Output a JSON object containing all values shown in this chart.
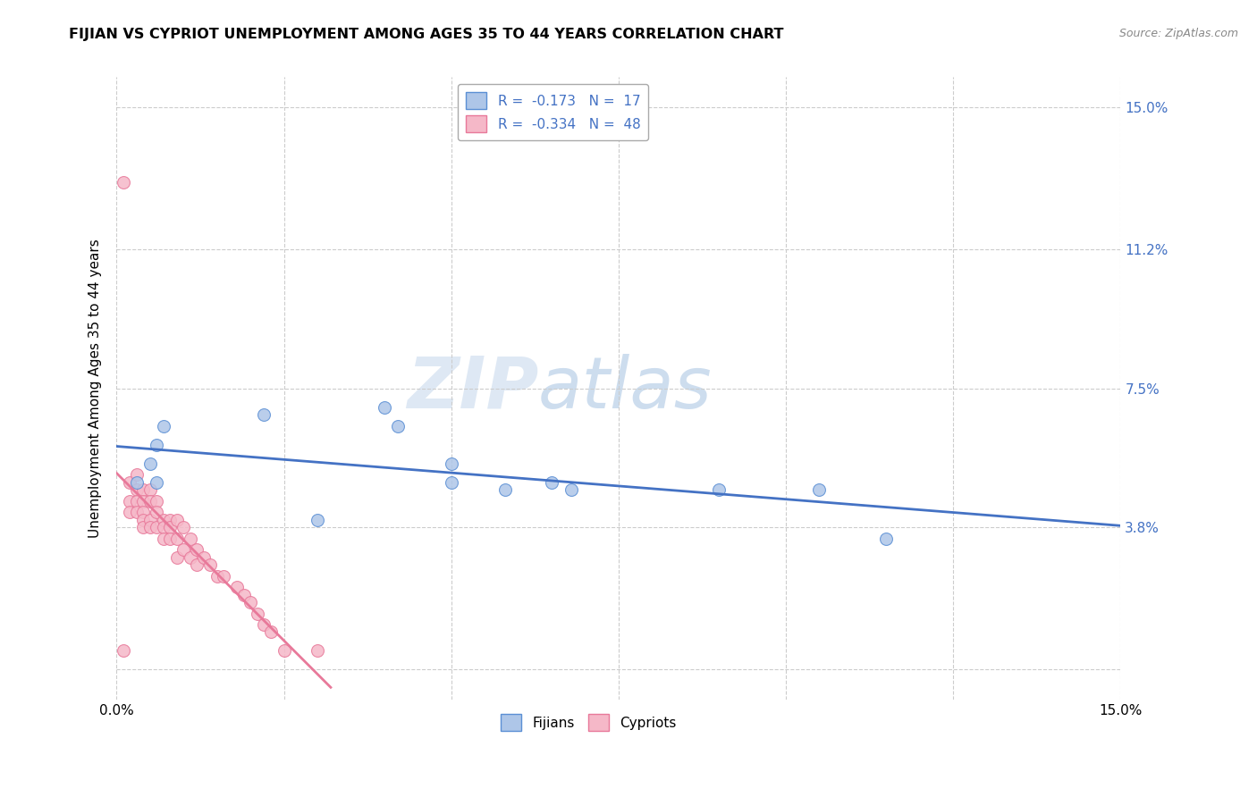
{
  "title": "FIJIAN VS CYPRIOT UNEMPLOYMENT AMONG AGES 35 TO 44 YEARS CORRELATION CHART",
  "source": "Source: ZipAtlas.com",
  "ylabel": "Unemployment Among Ages 35 to 44 years",
  "xlim": [
    0.0,
    0.15
  ],
  "ylim": [
    -0.008,
    0.158
  ],
  "xticks": [
    0.0,
    0.025,
    0.05,
    0.075,
    0.1,
    0.125,
    0.15
  ],
  "xtick_labels": [
    "0.0%",
    "",
    "",
    "",
    "",
    "",
    "15.0%"
  ],
  "ytick_positions": [
    0.0,
    0.038,
    0.075,
    0.112,
    0.15
  ],
  "right_ytick_labels": [
    "",
    "3.8%",
    "7.5%",
    "11.2%",
    "15.0%"
  ],
  "fijian_color": "#aec6e8",
  "cypriot_color": "#f5b8c8",
  "fijian_edge_color": "#5b8fd4",
  "cypriot_edge_color": "#e8799a",
  "fijian_line_color": "#4472C4",
  "cypriot_line_color": "#e8799a",
  "fijian_R": -0.173,
  "fijian_N": 17,
  "cypriot_R": -0.334,
  "cypriot_N": 48,
  "watermark_zip": "ZIP",
  "watermark_atlas": "atlas",
  "legend_label_fijian": "Fijians",
  "legend_label_cypriot": "Cypriots",
  "fijian_x": [
    0.003,
    0.005,
    0.006,
    0.006,
    0.007,
    0.022,
    0.03,
    0.04,
    0.042,
    0.05,
    0.05,
    0.058,
    0.065,
    0.068,
    0.09,
    0.105,
    0.115
  ],
  "fijian_y": [
    0.05,
    0.055,
    0.05,
    0.06,
    0.065,
    0.068,
    0.04,
    0.07,
    0.065,
    0.055,
    0.05,
    0.048,
    0.05,
    0.048,
    0.048,
    0.048,
    0.035
  ],
  "cypriot_x": [
    0.001,
    0.001,
    0.002,
    0.002,
    0.002,
    0.003,
    0.003,
    0.003,
    0.003,
    0.004,
    0.004,
    0.004,
    0.004,
    0.004,
    0.005,
    0.005,
    0.005,
    0.005,
    0.006,
    0.006,
    0.006,
    0.007,
    0.007,
    0.007,
    0.008,
    0.008,
    0.008,
    0.009,
    0.009,
    0.009,
    0.01,
    0.01,
    0.011,
    0.011,
    0.012,
    0.012,
    0.013,
    0.014,
    0.015,
    0.016,
    0.018,
    0.019,
    0.02,
    0.021,
    0.022,
    0.023,
    0.025,
    0.03
  ],
  "cypriot_y": [
    0.13,
    0.005,
    0.05,
    0.045,
    0.042,
    0.052,
    0.048,
    0.045,
    0.042,
    0.048,
    0.045,
    0.042,
    0.04,
    0.038,
    0.048,
    0.045,
    0.04,
    0.038,
    0.045,
    0.042,
    0.038,
    0.04,
    0.038,
    0.035,
    0.04,
    0.038,
    0.035,
    0.04,
    0.035,
    0.03,
    0.038,
    0.032,
    0.035,
    0.03,
    0.032,
    0.028,
    0.03,
    0.028,
    0.025,
    0.025,
    0.022,
    0.02,
    0.018,
    0.015,
    0.012,
    0.01,
    0.005,
    0.005
  ],
  "grid_color": "#cccccc",
  "background_color": "#ffffff"
}
